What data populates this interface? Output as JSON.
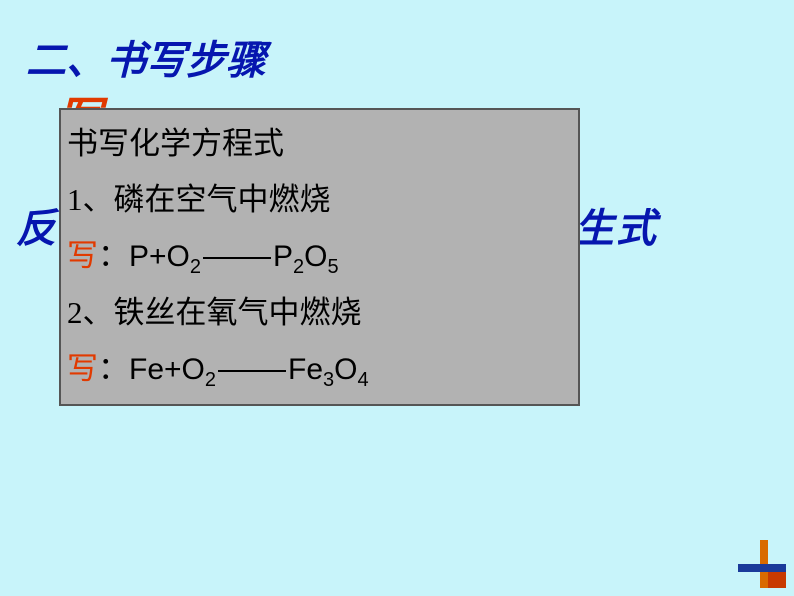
{
  "title": "二、书写步骤",
  "bg_write": "写",
  "bg_left": "反",
  "bg_right": "生式",
  "panel": {
    "heading": "书写化学方程式",
    "item1_label": "1、磷在空气中燃烧",
    "item2_label": "2、铁丝在氧气中燃烧",
    "write_label": "写",
    "colon": "：",
    "p_sym": "P",
    "o_sym": "O",
    "fe_sym": "Fe",
    "plus": "+",
    "sub2": "2",
    "sub3": "3",
    "sub4": "4",
    "sub5": "5"
  },
  "colors": {
    "background": "#c8f4fa",
    "title_color": "#0616af",
    "accent": "#e13a00",
    "panel_bg": "#b2b2b2",
    "panel_border": "#555555"
  }
}
